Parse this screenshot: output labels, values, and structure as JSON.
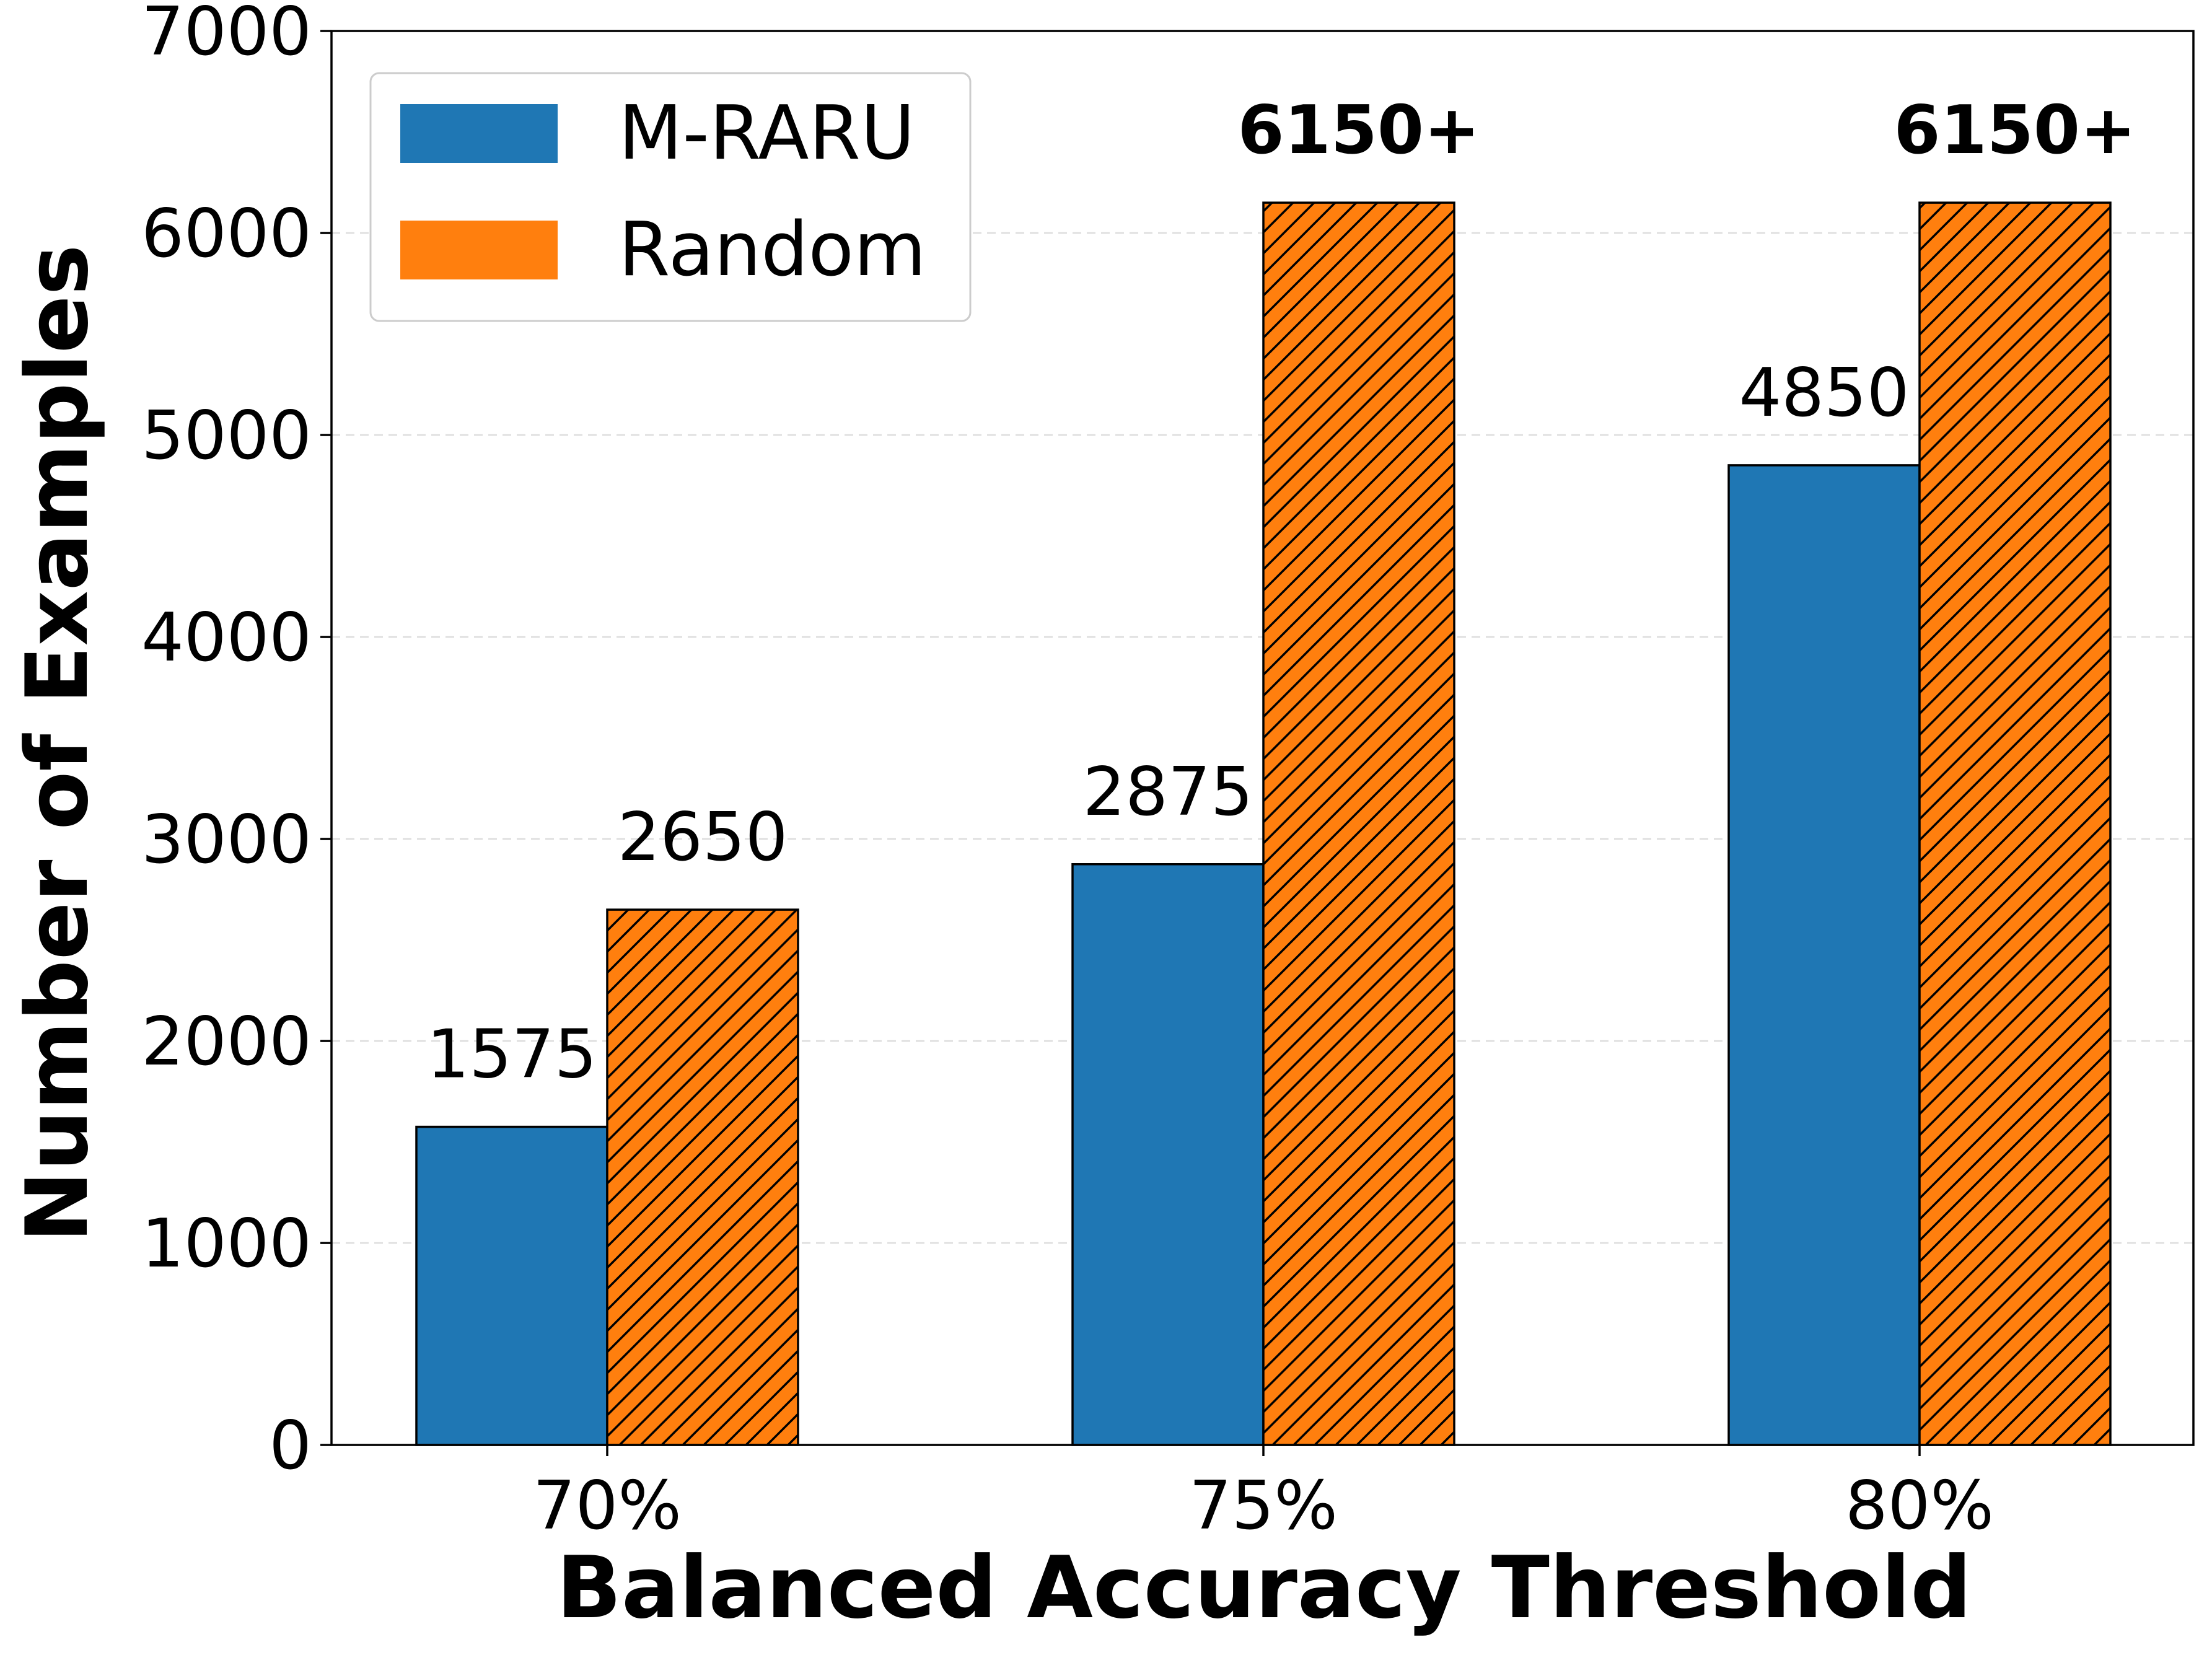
{
  "chart_data": {
    "type": "bar",
    "title": "",
    "xlabel": "Balanced Accuracy Threshold",
    "ylabel": "Number of Examples",
    "categories": [
      "70%",
      "75%",
      "80%"
    ],
    "series": [
      {
        "name": "M-RARU",
        "values": [
          1575,
          2875,
          4850
        ],
        "labels": [
          "1575",
          "2875",
          "4850"
        ],
        "color": "#1f77b4",
        "hatch": false
      },
      {
        "name": "Random",
        "values": [
          2650,
          6150,
          6150
        ],
        "labels": [
          "2650",
          "6150+",
          "6150+"
        ],
        "color": "#ff7f0e",
        "hatch": true
      }
    ],
    "bold_labels": [
      "6150+"
    ],
    "ylim": [
      0,
      7000
    ],
    "yticks": [
      0,
      1000,
      2000,
      3000,
      4000,
      5000,
      6000,
      7000
    ],
    "grid": "horizontal-dashed",
    "legend_position": "top-left"
  }
}
